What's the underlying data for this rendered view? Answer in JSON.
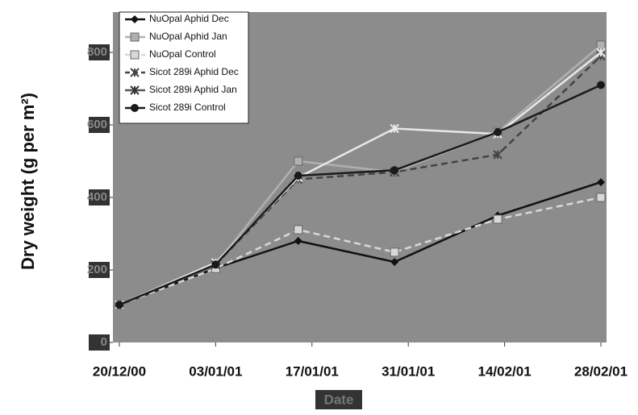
{
  "chart_data": {
    "type": "line",
    "y_label": "Dry weight (g per m²)",
    "x_label": "Date",
    "x": [
      0,
      14,
      26,
      40,
      55,
      70
    ],
    "xlim": [
      0,
      70
    ],
    "xticks": [
      {
        "value": 0,
        "label": "20/12/00"
      },
      {
        "value": 14,
        "label": "03/01/01"
      },
      {
        "value": 28,
        "label": "17/01/01"
      },
      {
        "value": 42,
        "label": "31/01/01"
      },
      {
        "value": 56,
        "label": "14/02/01"
      },
      {
        "value": 70,
        "label": "28/02/01"
      }
    ],
    "ylim": [
      0,
      900
    ],
    "yticks": [
      0,
      200,
      400,
      600,
      800
    ],
    "series": [
      {
        "name": "NuOpal Aphid Dec",
        "color": "#111111",
        "marker": "diamond",
        "dash": false,
        "values": [
          104,
          205,
          280,
          222,
          350,
          442
        ]
      },
      {
        "name": "NuOpal Aphid Jan",
        "color": "#b0b0b0",
        "marker": "square",
        "dash": false,
        "values": [
          104,
          215,
          500,
          470,
          580,
          820
        ]
      },
      {
        "name": "NuOpal Control",
        "color": "#d8d8d8",
        "marker": "square",
        "dash": true,
        "values": [
          104,
          204,
          311,
          249,
          340,
          400
        ]
      },
      {
        "name": "Sicot 289i Aphid Dec",
        "color": "#444444",
        "marker": "x",
        "dash": true,
        "values": [
          104,
          215,
          450,
          470,
          518,
          790
        ]
      },
      {
        "name": "Sicot 289i Aphid Jan",
        "color": "#e8e8e8",
        "marker": "x",
        "dash": false,
        "values": [
          104,
          220,
          455,
          590,
          575,
          800
        ]
      },
      {
        "name": "Sicot 289i Control",
        "color": "#1a1a1a",
        "marker": "circle",
        "dash": false,
        "values": [
          104,
          215,
          460,
          475,
          580,
          710
        ]
      }
    ]
  }
}
